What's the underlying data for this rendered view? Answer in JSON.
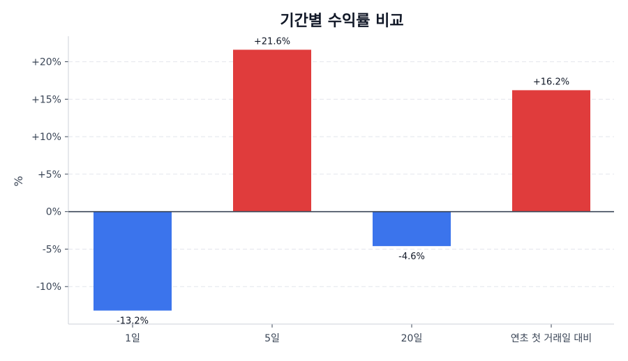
{
  "chart_data": {
    "type": "bar",
    "title": "기간별 수익률 비교",
    "xlabel": "",
    "ylabel": "%",
    "categories": [
      "1일",
      "5일",
      "20일",
      "연초 첫 거래일 대비"
    ],
    "values": [
      -13.2,
      21.6,
      -4.6,
      16.2
    ],
    "data_labels": [
      "-13.2%",
      "+21.6%",
      "-4.6%",
      "+16.2%"
    ],
    "ylim": [
      -15,
      23.4
    ],
    "yticks": [
      -10,
      -5,
      0,
      5,
      10,
      15,
      20
    ],
    "ytick_labels": [
      "-10%",
      "-5%",
      "0%",
      "+5%",
      "+10%",
      "+15%",
      "+20%"
    ],
    "grid": "horizontal dashed",
    "colors": {
      "positive": "#E03C3C",
      "negative": "#3B74EC",
      "zero_line": "#3A4556",
      "grid": "#E2E5EC",
      "axis": "#CDD1DA",
      "text": "#3A4556",
      "title": "#111827"
    }
  }
}
